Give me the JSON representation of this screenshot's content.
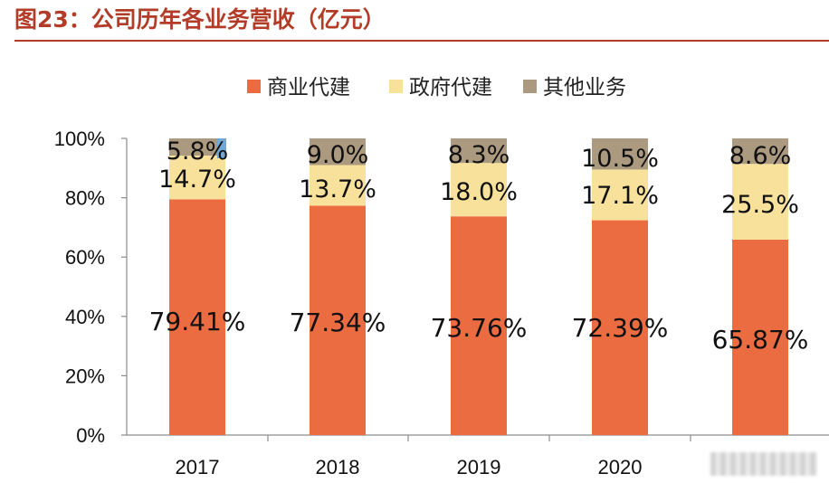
{
  "page": {
    "title": "图23：公司历年各业务营收（亿元）"
  },
  "chart_data": {
    "type": "bar",
    "stacked": true,
    "categories": [
      "2017",
      "2018",
      "2019",
      "2020",
      "2021"
    ],
    "series": [
      {
        "name": "商业代建",
        "color": "#ec6c42",
        "values": [
          79.41,
          77.34,
          73.76,
          72.39,
          65.87
        ],
        "labels": [
          "79.41%",
          "77.34%",
          "73.76%",
          "72.39%",
          "65.87%"
        ]
      },
      {
        "name": "政府代建",
        "color": "#f8e19b",
        "values": [
          14.7,
          13.7,
          18.0,
          17.1,
          25.5
        ],
        "labels": [
          "14.7%",
          "13.7%",
          "18.0%",
          "17.1%",
          "25.5%"
        ]
      },
      {
        "name": "其他业务",
        "color": "#ac9a80",
        "values": [
          5.8,
          9.0,
          8.3,
          10.5,
          8.6
        ],
        "labels": [
          "5.8%",
          "9.0%",
          "8.3%",
          "10.5%",
          "8.6%"
        ]
      }
    ],
    "y_ticks": [
      "0%",
      "20%",
      "40%",
      "60%",
      "80%",
      "100%"
    ],
    "ylim": [
      0,
      100
    ],
    "legend_position": "top",
    "grid": false
  }
}
